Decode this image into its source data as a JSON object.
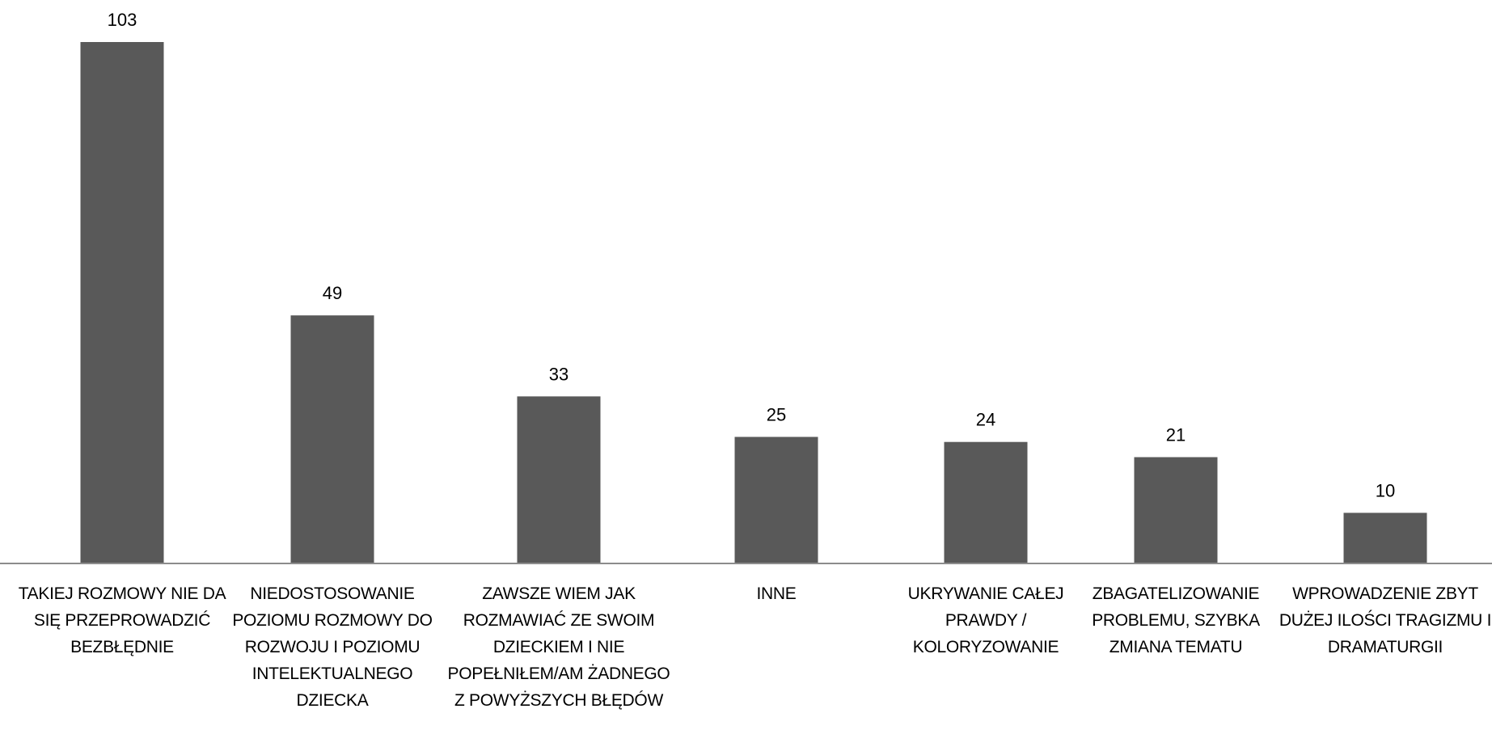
{
  "chart_data": {
    "type": "bar",
    "categories": [
      "TAKIEJ ROZMOWY NIE DA SIĘ PRZEPROWADZIĆ BEZBŁĘDNIE",
      "NIEDOSTOSOWANIE POZIOMU ROZMOWY DO ROZWOJU I POZIOMU INTELEKTUALNEGO DZIECKA",
      "ZAWSZE WIEM JAK ROZMAWIAĆ ZE SWOIM DZIECKIEM I NIE POPEŁNIŁEM/AM ŻADNEGO Z POWYŻSZYCH BŁĘDÓW",
      "INNE",
      "UKRYWANIE CAŁEJ PRAWDY / KOLORYZOWANIE",
      "ZBAGATELIZOWANIE PROBLEMU, SZYBKA ZMIANA TEMATU",
      "WPROWADZENIE ZBYT DUŻEJ ILOŚCI TRAGIZMU I DRAMATURGII"
    ],
    "values": [
      103,
      49,
      33,
      25,
      24,
      21,
      10
    ],
    "data_labels": [
      "103",
      "49",
      "33",
      "25",
      "24",
      "21",
      "10"
    ],
    "title": "",
    "xlabel": "",
    "ylabel": "",
    "ylim": [
      0,
      103
    ],
    "bar_color": "#595959",
    "grid": false,
    "legend": "none",
    "y_axis_shown": false
  }
}
